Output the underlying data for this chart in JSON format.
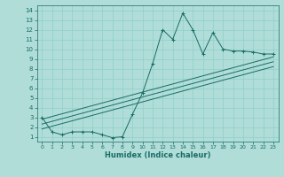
{
  "title": "",
  "xlabel": "Humidex (Indice chaleur)",
  "bg_color": "#b0ddd8",
  "grid_color": "#8ecfca",
  "line_color": "#1a6b65",
  "xlim": [
    -0.5,
    23.5
  ],
  "ylim": [
    0.5,
    14.5
  ],
  "xticks": [
    0,
    1,
    2,
    3,
    4,
    5,
    6,
    7,
    8,
    9,
    10,
    11,
    12,
    13,
    14,
    15,
    16,
    17,
    18,
    19,
    20,
    21,
    22,
    23
  ],
  "yticks": [
    1,
    2,
    3,
    4,
    5,
    6,
    7,
    8,
    9,
    10,
    11,
    12,
    13,
    14
  ],
  "main_line": [
    [
      0,
      3.0
    ],
    [
      1,
      1.5
    ],
    [
      2,
      1.2
    ],
    [
      3,
      1.5
    ],
    [
      4,
      1.5
    ],
    [
      5,
      1.5
    ],
    [
      6,
      1.2
    ],
    [
      7,
      0.9
    ],
    [
      8,
      1.0
    ],
    [
      9,
      3.3
    ],
    [
      10,
      5.5
    ],
    [
      11,
      8.5
    ],
    [
      12,
      12.0
    ],
    [
      13,
      11.0
    ],
    [
      14,
      13.7
    ],
    [
      15,
      12.0
    ],
    [
      16,
      9.5
    ],
    [
      17,
      11.7
    ],
    [
      18,
      10.0
    ],
    [
      19,
      9.8
    ],
    [
      20,
      9.8
    ],
    [
      21,
      9.7
    ],
    [
      22,
      9.5
    ],
    [
      23,
      9.5
    ]
  ],
  "line1": [
    [
      0,
      2.8
    ],
    [
      23,
      9.2
    ]
  ],
  "line2": [
    [
      0,
      2.3
    ],
    [
      23,
      8.7
    ]
  ],
  "line3": [
    [
      0,
      1.8
    ],
    [
      23,
      8.2
    ]
  ]
}
